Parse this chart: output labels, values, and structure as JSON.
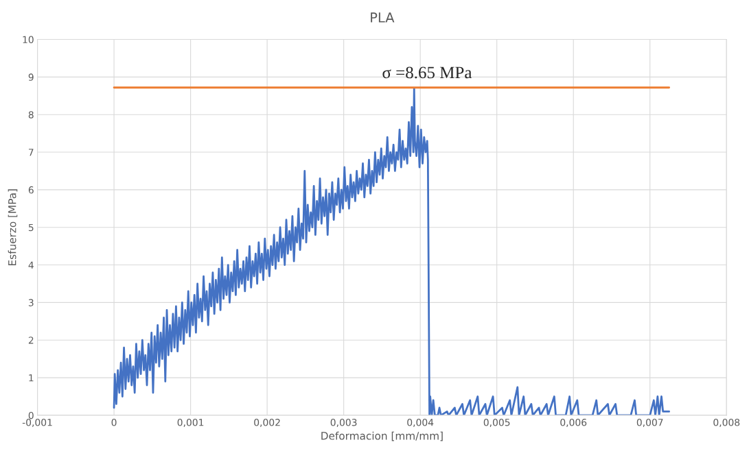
{
  "chart_data": {
    "type": "line",
    "title": "PLA",
    "xlabel": "Deformacion [mm/mm]",
    "ylabel": "Esfuerzo [MPa]",
    "xlim": [
      -0.001,
      0.008
    ],
    "ylim": [
      0,
      10
    ],
    "xticks": [
      {
        "value": -0.001,
        "label": "-0,001"
      },
      0,
      {
        "value": 0.001,
        "label": "0,001"
      },
      {
        "value": 0.002,
        "label": "0,002"
      },
      {
        "value": 0.003,
        "label": "0,003"
      },
      {
        "value": 0.004,
        "label": "0,004"
      },
      {
        "value": 0.005,
        "label": "0,005"
      },
      {
        "value": 0.006,
        "label": "0,006"
      },
      {
        "value": 0.007,
        "label": "0,007"
      },
      {
        "value": 0.008,
        "label": "0,008"
      }
    ],
    "yticks": [
      0,
      1,
      2,
      3,
      4,
      5,
      6,
      7,
      8,
      9,
      10
    ],
    "grid": true,
    "annotations": [
      {
        "text": "σ =8.65 MPa",
        "x": 0.0035,
        "y": 8.72
      }
    ],
    "series": [
      {
        "color": "#4472c4",
        "x": [
          0,
          1e-05,
          3e-05,
          5e-05,
          7e-05,
          9e-05,
          0.00011,
          0.00013,
          0.00015,
          0.00017,
          0.00019,
          0.00021,
          0.00023,
          0.00025,
          0.00027,
          0.00029,
          0.00031,
          0.00033,
          0.00035,
          0.00037,
          0.00039,
          0.00041,
          0.00043,
          0.00045,
          0.00047,
          0.00049,
          0.00051,
          0.00053,
          0.00055,
          0.00057,
          0.00059,
          0.00061,
          0.00063,
          0.00065,
          0.00067,
          0.00069,
          0.00071,
          0.00073,
          0.00075,
          0.00077,
          0.00079,
          0.00081,
          0.00083,
          0.00085,
          0.00087,
          0.00089,
          0.00091,
          0.00093,
          0.00095,
          0.00097,
          0.00099,
          0.00101,
          0.00103,
          0.00105,
          0.00107,
          0.00109,
          0.00111,
          0.00113,
          0.00115,
          0.00117,
          0.00119,
          0.00121,
          0.00123,
          0.00125,
          0.00127,
          0.00129,
          0.00131,
          0.00133,
          0.00135,
          0.00137,
          0.00139,
          0.00141,
          0.00143,
          0.00145,
          0.00147,
          0.00149,
          0.00151,
          0.00153,
          0.00155,
          0.00157,
          0.00159,
          0.00161,
          0.00163,
          0.00165,
          0.00167,
          0.00169,
          0.00171,
          0.00173,
          0.00175,
          0.00177,
          0.00179,
          0.00181,
          0.00183,
          0.00185,
          0.00187,
          0.00189,
          0.00191,
          0.00193,
          0.00195,
          0.00197,
          0.00199,
          0.00201,
          0.00203,
          0.00205,
          0.00207,
          0.00209,
          0.00211,
          0.00213,
          0.00215,
          0.00217,
          0.00219,
          0.00221,
          0.00223,
          0.00225,
          0.00227,
          0.00229,
          0.00231,
          0.00233,
          0.00235,
          0.00237,
          0.00239,
          0.00241,
          0.00243,
          0.00245,
          0.00247,
          0.00249,
          0.00251,
          0.00253,
          0.00255,
          0.00257,
          0.00259,
          0.00261,
          0.00263,
          0.00265,
          0.00267,
          0.00269,
          0.00271,
          0.00273,
          0.00275,
          0.00277,
          0.00279,
          0.00281,
          0.00283,
          0.00285,
          0.00287,
          0.00289,
          0.00291,
          0.00293,
          0.00295,
          0.00297,
          0.00299,
          0.00301,
          0.00303,
          0.00305,
          0.00307,
          0.00309,
          0.00311,
          0.00313,
          0.00315,
          0.00317,
          0.00319,
          0.00321,
          0.00323,
          0.00325,
          0.00327,
          0.00329,
          0.00331,
          0.00333,
          0.00335,
          0.00337,
          0.00339,
          0.00341,
          0.00343,
          0.00345,
          0.00347,
          0.00349,
          0.00351,
          0.00353,
          0.00355,
          0.00357,
          0.00359,
          0.00361,
          0.00363,
          0.00365,
          0.00367,
          0.00369,
          0.00371,
          0.00373,
          0.00375,
          0.00377,
          0.00379,
          0.00381,
          0.00383,
          0.00385,
          0.00387,
          0.00389,
          0.00391,
          0.00392,
          0.00393,
          0.00395,
          0.00397,
          0.00399,
          0.00401,
          0.00403,
          0.00405,
          0.00407,
          0.00409,
          0.0041,
          0.00412,
          0.00413,
          0.00415,
          0.00417,
          0.00419,
          0.00423,
          0.00425,
          0.00427,
          0.00435,
          0.00437,
          0.00445,
          0.00447,
          0.00455,
          0.00457,
          0.00465,
          0.00467,
          0.00475,
          0.00477,
          0.00485,
          0.00487,
          0.00495,
          0.00497,
          0.00507,
          0.00509,
          0.00517,
          0.00519,
          0.00527,
          0.00529,
          0.00535,
          0.00537,
          0.00545,
          0.00547,
          0.00555,
          0.00557,
          0.00565,
          0.00567,
          0.00575,
          0.00577,
          0.0059,
          0.00595,
          0.00597,
          0.00605,
          0.00607,
          0.00625,
          0.0063,
          0.00632,
          0.00645,
          0.00647,
          0.00655,
          0.00657,
          0.00675,
          0.0068,
          0.00682,
          0.007,
          0.00705,
          0.00707,
          0.0071,
          0.00712,
          0.00715,
          0.00717,
          0.00725
        ],
        "values": [
          0.2,
          1.1,
          0.3,
          1.2,
          0.6,
          1.4,
          0.5,
          1.8,
          0.7,
          1.5,
          0.9,
          1.6,
          0.8,
          1.3,
          0.6,
          1.9,
          1.0,
          1.7,
          1.1,
          2.0,
          1.2,
          1.6,
          0.8,
          1.9,
          1.2,
          2.2,
          0.6,
          2.1,
          1.4,
          2.4,
          1.3,
          2.2,
          1.5,
          2.6,
          0.9,
          2.8,
          1.6,
          2.4,
          1.7,
          2.7,
          1.8,
          2.9,
          1.7,
          2.6,
          2.0,
          3.0,
          1.9,
          2.8,
          2.2,
          3.3,
          2.1,
          3.0,
          2.4,
          3.2,
          2.2,
          3.5,
          2.6,
          3.1,
          2.5,
          3.7,
          2.8,
          3.3,
          2.4,
          3.5,
          2.9,
          3.8,
          2.7,
          3.6,
          3.0,
          3.9,
          2.8,
          4.2,
          3.1,
          3.7,
          3.2,
          4.0,
          3.0,
          3.8,
          3.3,
          4.1,
          3.2,
          4.4,
          3.4,
          3.9,
          3.5,
          4.1,
          3.3,
          4.2,
          3.6,
          4.5,
          3.4,
          4.1,
          3.7,
          4.3,
          3.5,
          4.6,
          3.8,
          4.3,
          3.6,
          4.7,
          3.9,
          4.4,
          3.7,
          4.5,
          4.0,
          4.8,
          3.9,
          4.6,
          4.1,
          5.0,
          4.2,
          4.7,
          4.0,
          5.2,
          4.3,
          4.9,
          4.4,
          5.3,
          4.1,
          5.0,
          4.6,
          5.5,
          4.4,
          5.1,
          4.7,
          6.5,
          4.6,
          5.6,
          4.9,
          5.4,
          5.0,
          6.1,
          4.8,
          5.7,
          5.2,
          6.3,
          5.1,
          5.8,
          5.3,
          6.0,
          4.8,
          5.9,
          5.4,
          6.2,
          5.2,
          5.9,
          5.6,
          6.3,
          5.4,
          6.0,
          5.5,
          6.6,
          5.7,
          6.1,
          5.5,
          6.4,
          5.8,
          6.2,
          5.7,
          6.5,
          5.9,
          6.3,
          6.0,
          6.7,
          5.8,
          6.4,
          6.1,
          6.8,
          5.9,
          6.5,
          6.1,
          7.0,
          6.2,
          6.8,
          6.4,
          7.1,
          6.3,
          6.9,
          6.6,
          7.4,
          6.5,
          7.0,
          6.7,
          7.2,
          6.5,
          7.0,
          6.8,
          7.6,
          6.6,
          7.3,
          6.8,
          7.1,
          6.7,
          7.8,
          6.9,
          8.2,
          7.0,
          8.7,
          7.3,
          6.9,
          7.7,
          6.6,
          7.6,
          6.7,
          7.4,
          7.0,
          7.3,
          6.8,
          0.0,
          0.5,
          0.0,
          0.4,
          0.0,
          0.0,
          0.2,
          0.0,
          0.1,
          0.0,
          0.2,
          0.0,
          0.3,
          0.0,
          0.4,
          0.0,
          0.5,
          0.0,
          0.3,
          0.0,
          0.5,
          0.0,
          0.2,
          0.0,
          0.4,
          0.0,
          0.75,
          0.0,
          0.5,
          0.0,
          0.3,
          0.0,
          0.2,
          0.0,
          0.3,
          0.0,
          0.5,
          0.0,
          0.0,
          0.5,
          0.0,
          0.4,
          0.0,
          0.0,
          0.4,
          0.0,
          0.3,
          0.0,
          0.3,
          0.0,
          0.0,
          0.4,
          0.0,
          0.0,
          0.4,
          0.0,
          0.5,
          0.0,
          0.5,
          0.1,
          0.1
        ]
      },
      {
        "color": "#ed7d31",
        "x": [
          0,
          0.00725
        ],
        "values": [
          8.72,
          8.72
        ]
      }
    ]
  }
}
